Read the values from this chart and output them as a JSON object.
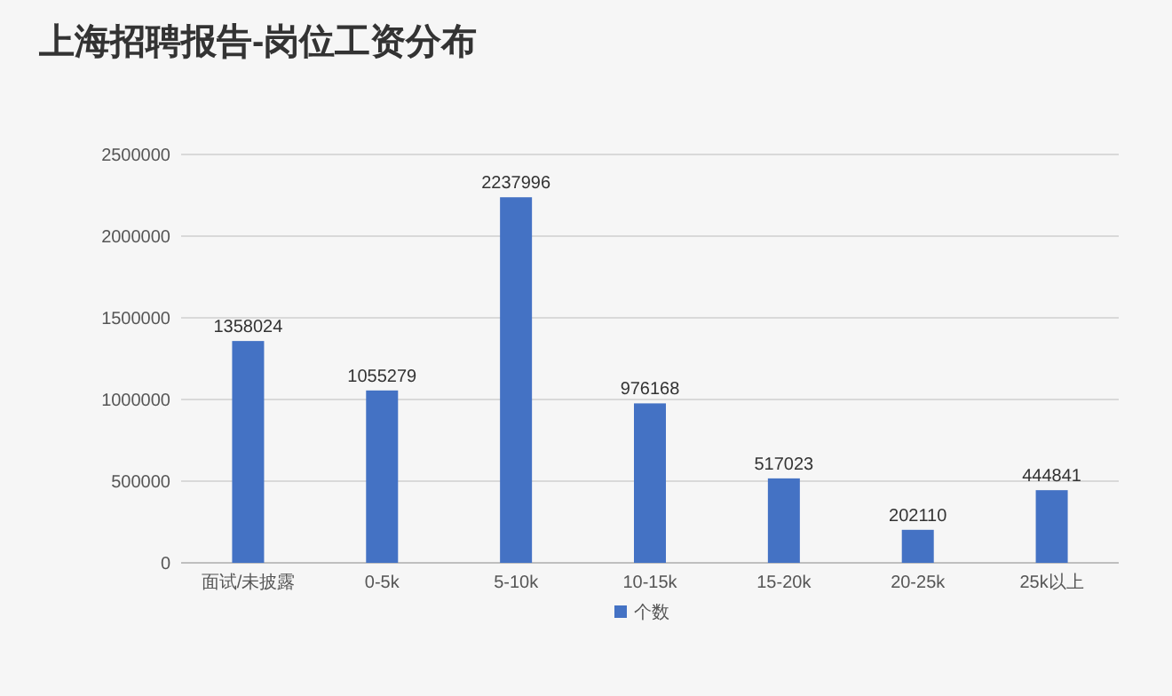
{
  "chart_data": {
    "type": "bar",
    "title": "上海招聘报告-岗位工资分布",
    "categories": [
      "面试/未披露",
      "0-5k",
      "5-10k",
      "10-15k",
      "15-20k",
      "20-25k",
      "25k以上"
    ],
    "series": [
      {
        "name": "个数",
        "color": "#4472c4",
        "values": [
          1358024,
          1055279,
          2237996,
          976168,
          517023,
          202110,
          444841
        ]
      }
    ],
    "ylim": [
      0,
      2500000
    ],
    "yticks": [
      0,
      500000,
      1000000,
      1500000,
      2000000,
      2500000
    ],
    "grid": "y",
    "legend": "bottom",
    "data_labels": true
  }
}
